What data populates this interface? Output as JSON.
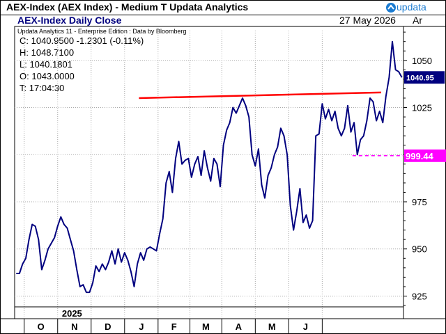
{
  "window": {
    "title": "AEX-Index (AEX Index) - Medium T  Updata Analytics",
    "logo_text": "updata"
  },
  "chart_header": {
    "title": "AEX-Index Daily Close",
    "date": "27 May 2026",
    "axis_tag": "Ar",
    "subtitle": "Updata Analytics 11 - Enterprise Edition : Data by Bloomberg",
    "readout": {
      "close": "C: 1040.9500  -1.2301 (-0.11%)",
      "high": "H: 1048.7100",
      "low": "L: 1040.1801",
      "open": "O: 1043.0000",
      "time": "T: 17:04:30"
    }
  },
  "chart_data": {
    "type": "line",
    "title": "AEX-Index Daily Close",
    "ylim": [
      913,
      1068
    ],
    "y_ticks": [
      925,
      950,
      975,
      1000,
      1025,
      1050
    ],
    "y_tick_labels": [
      "925",
      "950",
      "975",
      "1000",
      "1025",
      "1050"
    ],
    "x_tick_labels": [
      "O",
      "N",
      "D",
      "J",
      "F",
      "M",
      "A",
      "M",
      "J"
    ],
    "year_label": "2025",
    "grid": true,
    "series": [
      {
        "color": "#00007f",
        "x": [
          1,
          3,
          5,
          7,
          9,
          11,
          13,
          15,
          17,
          19,
          21,
          23,
          25,
          27,
          29,
          31,
          33,
          35,
          37,
          39,
          41,
          43,
          45,
          47,
          49,
          51,
          53,
          55,
          57,
          59,
          61,
          63,
          65,
          67,
          69,
          71,
          73,
          75,
          77,
          79,
          81,
          83,
          85,
          87,
          89,
          91,
          93,
          95,
          97,
          99,
          101,
          103,
          105,
          107,
          109,
          111,
          113,
          115,
          117,
          119,
          121,
          123,
          125,
          127,
          129,
          131,
          133,
          135,
          137,
          139,
          141,
          143,
          145,
          147,
          149,
          151,
          153,
          155,
          157,
          159,
          161,
          163,
          165,
          167,
          169,
          171,
          173,
          175,
          177,
          179,
          181,
          183,
          185,
          187,
          189,
          191,
          193,
          195,
          197,
          199,
          201,
          203,
          205,
          207,
          209,
          211,
          213,
          215,
          217,
          219,
          221,
          223,
          225,
          227,
          229,
          231,
          233,
          235,
          237,
          239,
          241,
          243
        ],
        "values": [
          937,
          937,
          942,
          945,
          955,
          963,
          962,
          955,
          939,
          944,
          950,
          953,
          956,
          962,
          967,
          963,
          961,
          955,
          949,
          939,
          930,
          931,
          927,
          927,
          932,
          941,
          938,
          942,
          939,
          943,
          949,
          942,
          950,
          943,
          948,
          944,
          938,
          930,
          942,
          948,
          944,
          950,
          951,
          950,
          949,
          958,
          966,
          985,
          991,
          980,
          998,
          1007,
          995,
          997,
          998,
          988,
          995,
          999,
          989,
          1002,
          993,
          986,
          998,
          995,
          983,
          1005,
          1013,
          1017,
          1025,
          1022,
          1026,
          1030,
          1026,
          1020,
          1000,
          994,
          1003,
          984,
          977,
          989,
          993,
          1000,
          1004,
          1014,
          1010,
          1000,
          973,
          960,
          970,
          982,
          964,
          968,
          961,
          965,
          1010,
          1011,
          1027,
          1019,
          1024,
          1018,
          1023,
          1014,
          1010,
          1014,
          1026,
          1012,
          1017,
          1000,
          1008,
          1010,
          1018,
          1030,
          1028,
          1018,
          1023,
          1017,
          1031,
          1041,
          1060,
          1045,
          1044,
          1041
        ]
      }
    ],
    "annotations": {
      "trend_line": {
        "from": [
          78,
          1030
        ],
        "to": [
          230,
          1033
        ],
        "color": "#ff0000"
      },
      "level_line": {
        "from": [
          212,
          999.44
        ],
        "to": [
          244,
          999.44
        ],
        "color": "#ff00ff",
        "label": "999.44"
      },
      "last_value": {
        "value": 1040.95,
        "label": "1040.95",
        "color": "#00007f"
      }
    }
  }
}
